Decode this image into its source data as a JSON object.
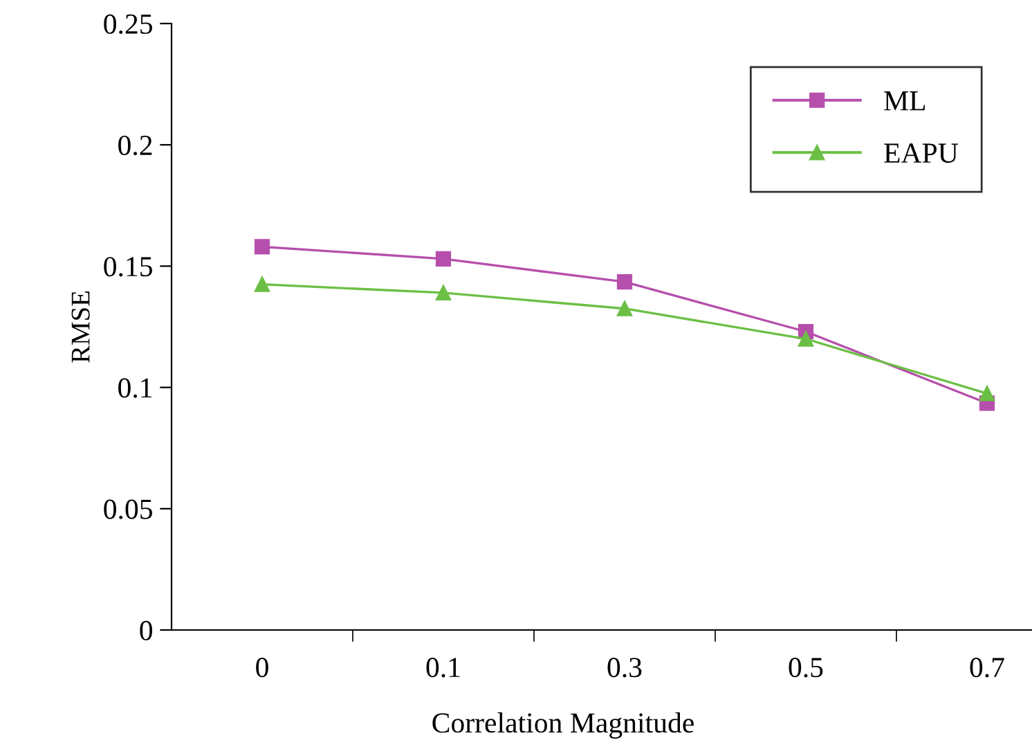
{
  "chart_data": {
    "type": "line",
    "xlabel": "Correlation Magnitude",
    "ylabel": "RMSE",
    "categories": [
      "0",
      "0.1",
      "0.3",
      "0.5",
      "0.7"
    ],
    "series": [
      {
        "name": "ML",
        "color": "#b64fac",
        "marker": "square",
        "values": [
          0.158,
          0.153,
          0.1435,
          0.123,
          0.0935
        ]
      },
      {
        "name": "EAPU",
        "color": "#6cbf45",
        "marker": "triangle",
        "values": [
          0.1425,
          0.139,
          0.1325,
          0.12,
          0.0975
        ]
      }
    ],
    "ylim": [
      0,
      0.25
    ],
    "yticks": [
      0,
      0.05,
      0.1,
      0.15,
      0.2,
      0.25
    ],
    "grid": false,
    "legend": "top right",
    "line_style": "solid"
  }
}
